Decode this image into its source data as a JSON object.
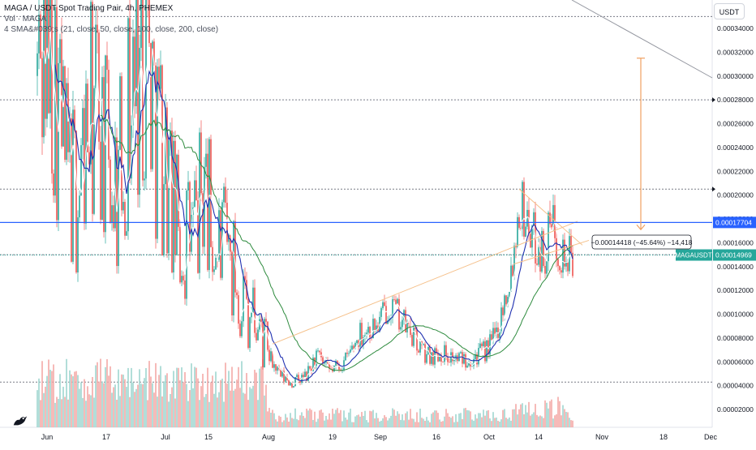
{
  "legend": {
    "title": "MAGA / USDT Spot Trading Pair, 4h, PHEMEX",
    "volume": "Vol · MAGA",
    "sma": "4 SMA&#039;s (21, close, 50, close, 100, close, 200, close)"
  },
  "currency_button": "USDT",
  "colors": {
    "up": "#26a69a",
    "down": "#ef5350",
    "vol_up": "#9fd6d0",
    "vol_down": "#f3a9a7",
    "sma_fast": "#ffffff",
    "sma_mid": "#1e2fb0",
    "sma_slow": "#2e8b3e",
    "trendline": "#f5c08a",
    "hline": "#787b86",
    "blue_line": "#2962ff",
    "price_label": "#26a69a",
    "measure_arrow": "#f0a060"
  },
  "chart_data": {
    "type": "candlestick",
    "x_axis_labels": [
      "Jun",
      "17",
      "Jul",
      "15",
      "Aug",
      "19",
      "Sep",
      "16",
      "Oct",
      "14",
      "Nov",
      "18",
      "Dec"
    ],
    "y_axis_labels": [
      "0.00034000",
      "0.00032000",
      "0.00030000",
      "0.00028000",
      "0.00026000",
      "0.00024000",
      "0.00022000",
      "0.00020000",
      "0.00018000",
      "0.00016000",
      "0.00014000",
      "0.00012000",
      "0.00010000",
      "0.00008000",
      "0.00006000",
      "0.00004000",
      "0.00002000"
    ],
    "ylim": [
      3e-07,
      0.000352
    ],
    "horizontal_levels": [
      0.00035,
      0.00028,
      0.000205,
      0.00015,
      4.3e-05
    ],
    "blue_level": 0.00017704,
    "last_price": 0.00014969,
    "labels": {
      "blue_level": "0.00017704",
      "symbol": "MAGAUSDT",
      "last_price": "0.00014969"
    },
    "measurement": {
      "label": "−0.00014418 (−45.64%) −14,418",
      "from": 0.000315,
      "to": 0.000171
    },
    "price_path": [
      [
        "Jun",
        0.00032
      ],
      [
        "Jun",
        0.00024
      ],
      [
        "Jun",
        0.0002
      ],
      [
        "17",
        0.0003
      ],
      [
        "17",
        0.00022
      ],
      [
        "Jul",
        0.00034
      ],
      [
        "Jul",
        0.00026
      ],
      [
        "Jul",
        0.00021
      ],
      [
        "15",
        0.00017
      ],
      [
        "15",
        0.00014
      ],
      [
        "Aug",
        6e-05
      ],
      [
        "Aug",
        4.5e-05
      ],
      [
        "19",
        5e-05
      ],
      [
        "Sep",
        9e-05
      ],
      [
        "Sep",
        0.00011
      ],
      [
        "16",
        6e-05
      ],
      [
        "Oct",
        7e-05
      ],
      [
        "Oct",
        0.00019
      ],
      [
        "14",
        0.00016
      ],
      [
        "14",
        0.00015
      ]
    ],
    "candle_count": 330
  }
}
